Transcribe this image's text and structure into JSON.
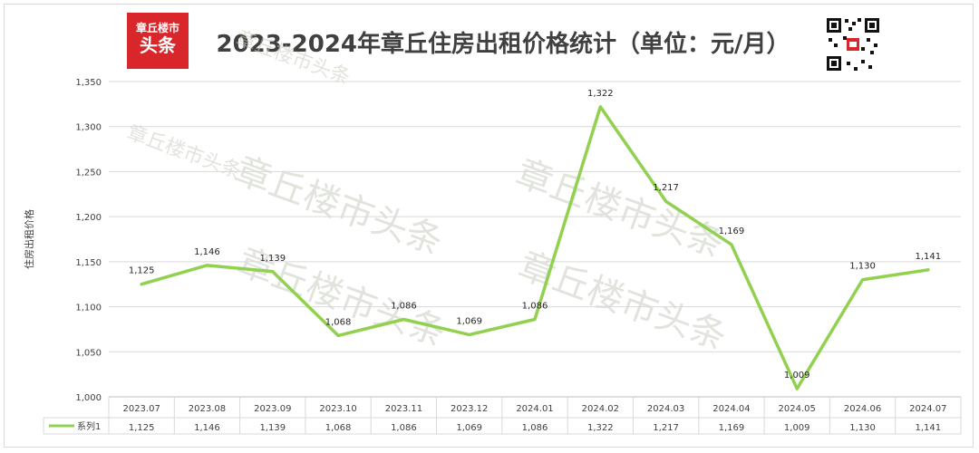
{
  "header": {
    "title": "2023-2024年章丘住房出租价格统计（单位：元/月）",
    "logo_line1": "章丘楼市",
    "logo_line2": "头条"
  },
  "watermark_text": "章丘楼市头条",
  "colors": {
    "line": "#92d050",
    "logo_bg": "#d9262a",
    "grid": "#d9d9d9",
    "text": "#404040"
  },
  "chart_data": {
    "type": "line",
    "title": "2023-2024年章丘住房出租价格统计（单位：元/月）",
    "ylabel": "住房出租价格",
    "xlabel": "",
    "categories": [
      "2023.07",
      "2023.08",
      "2023.09",
      "2023.10",
      "2023.11",
      "2023.12",
      "2024.01",
      "2024.02",
      "2024.03",
      "2024.04",
      "2024.05",
      "2024.06",
      "2024.07"
    ],
    "series": [
      {
        "name": "系列1",
        "values": [
          1125,
          1146,
          1139,
          1068,
          1086,
          1069,
          1086,
          1322,
          1217,
          1169,
          1009,
          1130,
          1141
        ]
      }
    ],
    "ylim": [
      1000,
      1350
    ],
    "yticks": [
      1000,
      1050,
      1100,
      1150,
      1200,
      1250,
      1300,
      1350
    ],
    "grid": true,
    "data_table": true
  }
}
